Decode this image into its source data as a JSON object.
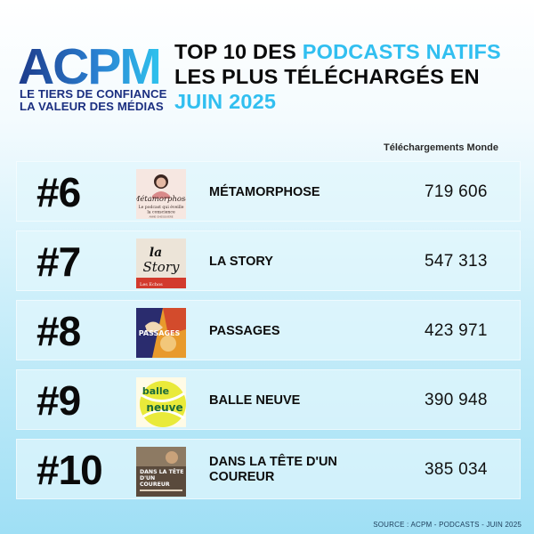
{
  "logo": {
    "wordmark": "ACPM",
    "tagline_1": "LE TIERS DE CONFIANCE",
    "tagline_2": "LA VALEUR DES MÉDIAS",
    "colors": {
      "blue": "#1d3a8a",
      "cyan": "#2fb9ec"
    }
  },
  "title": {
    "part1": "TOP 10 DES ",
    "highlight1": "PODCASTS NATIFS",
    "part2": "LES PLUS TÉLÉCHARGÉS EN",
    "highlight2": "JUIN 2025",
    "highlight_color": "#31bff0"
  },
  "column_header": "Téléchargements Monde",
  "rows": [
    {
      "rank": "#6",
      "name": "MÉTAMORPHOSE",
      "downloads": "719 606",
      "cover": {
        "icon": "metamorphose-cover",
        "line1": "Métamorphose",
        "line2": "Le podcast qui éveille",
        "line3": "la conscience",
        "line4": "ANNE GHESQUIÈRE"
      }
    },
    {
      "rank": "#7",
      "name": "LA STORY",
      "downloads": "547 313",
      "cover": {
        "icon": "la-story-cover",
        "line1": "la",
        "line2": "Story",
        "line3": "Les Echos"
      }
    },
    {
      "rank": "#8",
      "name": "PASSAGES",
      "downloads": "423 971",
      "cover": {
        "icon": "passages-cover",
        "line1": "PASSAGES"
      }
    },
    {
      "rank": "#9",
      "name": "BALLE NEUVE",
      "downloads": "390 948",
      "cover": {
        "icon": "balle-neuve-cover",
        "line1": "balle",
        "line2": "neuve"
      }
    },
    {
      "rank": "#10",
      "name": "DANS LA TÊTE D'UN COUREUR",
      "downloads": "385 034",
      "cover": {
        "icon": "dans-la-tete-cover",
        "line1": "DANS LA TÊTE",
        "line2": "D'UN",
        "line3": "COUREUR"
      }
    }
  ],
  "source": "SOURCE : ACPM - PODCASTS - JUIN 2025"
}
